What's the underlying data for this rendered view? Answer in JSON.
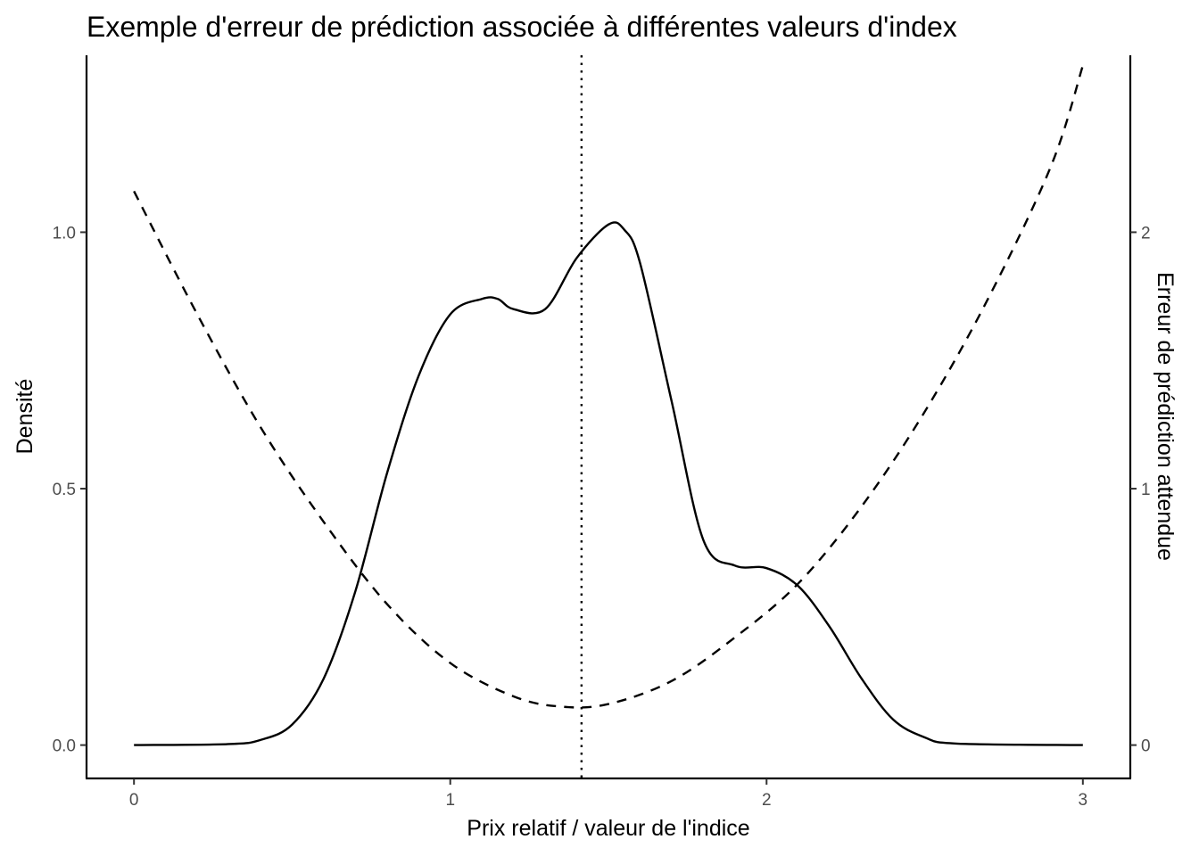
{
  "chart_data": {
    "type": "line",
    "title": "Exemple d'erreur de prédiction associée à différentes valeurs d'index",
    "xlabel": "Prix relatif / valeur de l'indice",
    "ylabel": "Densité",
    "y2label": "Erreur de prédiction attendue",
    "xlim": [
      -0.15,
      3.15
    ],
    "ylim": [
      -0.065,
      1.345
    ],
    "y2lim": [
      -0.13,
      2.69
    ],
    "x_ticks": [
      "0",
      "1",
      "2",
      "3"
    ],
    "x_tick_values": [
      0,
      1,
      2,
      3
    ],
    "y_ticks": [
      "0.0",
      "0.5",
      "1.0"
    ],
    "y_tick_values": [
      0,
      0.5,
      1.0
    ],
    "y2_ticks": [
      "0",
      "1",
      "2"
    ],
    "y2_tick_values": [
      0,
      1,
      2
    ],
    "grid": false,
    "vline": {
      "x": 1.415,
      "style": "dotted"
    },
    "series": [
      {
        "axis": "left",
        "style": "solid",
        "x": [
          0,
          0.3,
          0.4,
          0.5,
          0.6,
          0.7,
          0.8,
          0.9,
          1.0,
          1.1,
          1.15,
          1.2,
          1.3,
          1.4,
          1.5,
          1.55,
          1.6,
          1.7,
          1.8,
          1.9,
          2.0,
          2.1,
          2.2,
          2.3,
          2.4,
          2.5,
          2.6,
          3.0
        ],
        "values": [
          0,
          0.002,
          0.01,
          0.04,
          0.13,
          0.3,
          0.53,
          0.72,
          0.84,
          0.87,
          0.87,
          0.85,
          0.85,
          0.95,
          1.015,
          1.005,
          0.94,
          0.67,
          0.4,
          0.35,
          0.345,
          0.31,
          0.23,
          0.13,
          0.05,
          0.015,
          0.003,
          0
        ]
      },
      {
        "axis": "right",
        "style": "dashed",
        "x": [
          0,
          0.2,
          0.4,
          0.6,
          0.8,
          1.0,
          1.2,
          1.35,
          1.5,
          1.7,
          1.9,
          2.1,
          2.3,
          2.5,
          2.7,
          2.9,
          3.0
        ],
        "values": [
          2.16,
          1.68,
          1.24,
          0.87,
          0.55,
          0.32,
          0.19,
          0.15,
          0.16,
          0.25,
          0.42,
          0.63,
          0.93,
          1.3,
          1.74,
          2.26,
          2.65
        ]
      }
    ]
  }
}
